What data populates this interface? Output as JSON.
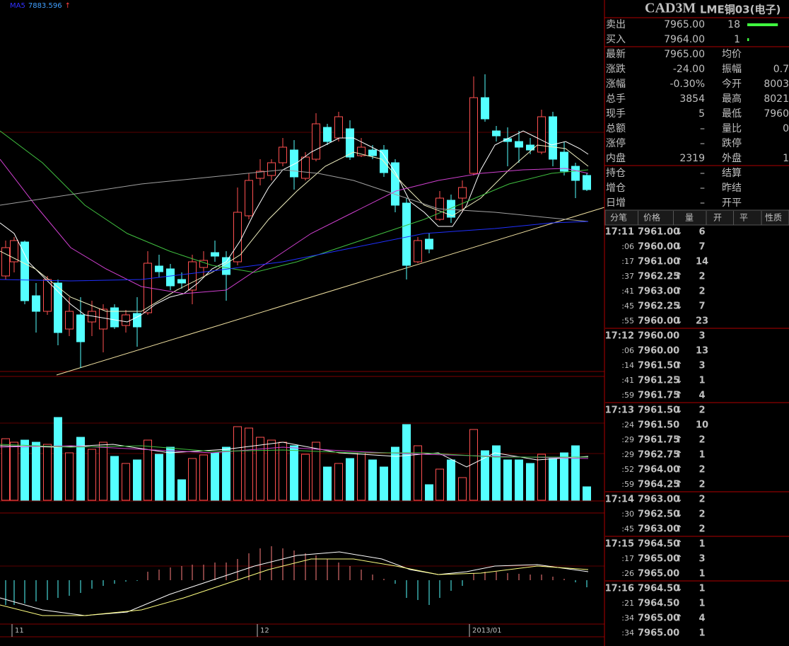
{
  "indicator": {
    "name": "MA5",
    "value": "7883.596",
    "arrow": "↑"
  },
  "x_labels": [
    "11",
    "12",
    "2013/01"
  ],
  "quote": {
    "symbol": "CAD3M",
    "name": "LME铜03(电子)",
    "depth": [
      {
        "label": "卖出",
        "price": "7965.00",
        "volume": 18
      },
      {
        "label": "买入",
        "price": "7964.00",
        "volume": 1
      }
    ],
    "rows": [
      {
        "label": "最新",
        "value": "7965.00",
        "label2": "均价"
      },
      {
        "label": "涨跌",
        "value": "-24.00",
        "label2": "振幅",
        "value2": "0.7"
      },
      {
        "label": "涨幅",
        "value": "-0.30%",
        "label2": "今开",
        "value2": "8003"
      },
      {
        "label": "总手",
        "value": "3854",
        "label2": "最高",
        "value2": "8021"
      },
      {
        "label": "现手",
        "value": "5",
        "label2": "最低",
        "value2": "7960"
      },
      {
        "label": "总额",
        "value": "–",
        "label2": "量比",
        "value2": "0"
      },
      {
        "label": "涨停",
        "value": "–",
        "label2": "跌停"
      },
      {
        "label": "内盘",
        "value": "2319",
        "label2": "外盘",
        "value2": "1"
      },
      {
        "label": "持仓",
        "value": "–",
        "label2": "结算"
      },
      {
        "label": "增仓",
        "value": "–",
        "label2": "昨结"
      },
      {
        "label": "日增",
        "value": "–",
        "label2": "开平"
      }
    ]
  },
  "ticks": {
    "headers": [
      "分笔",
      "价格",
      "量",
      "开",
      "平",
      "性质"
    ],
    "rows": [
      {
        "time": "17:11",
        "price": "7961.00",
        "dir": "↓",
        "volume": 6
      },
      {
        "time": ":06",
        "price": "7960.00",
        "dir": "↓",
        "volume": 7
      },
      {
        "time": ":17",
        "price": "7961.00",
        "dir": "↑",
        "volume": 14
      },
      {
        "time": ":37",
        "price": "7962.25",
        "dir": "↑",
        "volume": 2
      },
      {
        "time": ":41",
        "price": "7963.00",
        "dir": "↑",
        "volume": 2
      },
      {
        "time": ":45",
        "price": "7962.25",
        "dir": "↓",
        "volume": 7
      },
      {
        "time": ":55",
        "price": "7960.00",
        "dir": "↓",
        "volume": 23
      },
      {
        "time": "17:12",
        "price": "7960.00",
        "volume": 3
      },
      {
        "time": ":06",
        "price": "7960.00",
        "volume": 13
      },
      {
        "time": ":14",
        "price": "7961.50",
        "dir": "↑",
        "volume": 3
      },
      {
        "time": ":41",
        "price": "7961.25",
        "dir": "↓",
        "volume": 1
      },
      {
        "time": ":59",
        "price": "7961.75",
        "dir": "↑",
        "volume": 4
      },
      {
        "time": "17:13",
        "price": "7961.50",
        "dir": "↓",
        "volume": 2
      },
      {
        "time": ":24",
        "price": "7961.50",
        "volume": 10
      },
      {
        "time": ":29",
        "price": "7961.75",
        "dir": "↑",
        "volume": 2
      },
      {
        "time": ":29",
        "price": "7962.75",
        "dir": "↑",
        "volume": 1
      },
      {
        "time": ":52",
        "price": "7964.00",
        "dir": "↑",
        "volume": 2
      },
      {
        "time": ":59",
        "price": "7964.25",
        "dir": "↑",
        "volume": 2
      },
      {
        "time": "17:14",
        "price": "7963.00",
        "dir": "↓",
        "volume": 2
      },
      {
        "time": ":30",
        "price": "7962.50",
        "dir": "↓",
        "volume": 2
      },
      {
        "time": ":45",
        "price": "7963.00",
        "dir": "↑",
        "volume": 2
      },
      {
        "time": "17:15",
        "price": "7964.50",
        "dir": "↑",
        "volume": 1
      },
      {
        "time": ":17",
        "price": "7965.00",
        "dir": "↑",
        "volume": 3
      },
      {
        "time": ":26",
        "price": "7965.00",
        "volume": 1
      },
      {
        "time": "17:16",
        "price": "7964.50",
        "dir": "↓",
        "volume": 1
      },
      {
        "time": ":21",
        "price": "7964.50",
        "volume": 1
      },
      {
        "time": ":34",
        "price": "7965.00",
        "dir": "↑",
        "volume": 4
      },
      {
        "time": ":34",
        "price": "7965.00",
        "volume": 1
      }
    ]
  }
}
